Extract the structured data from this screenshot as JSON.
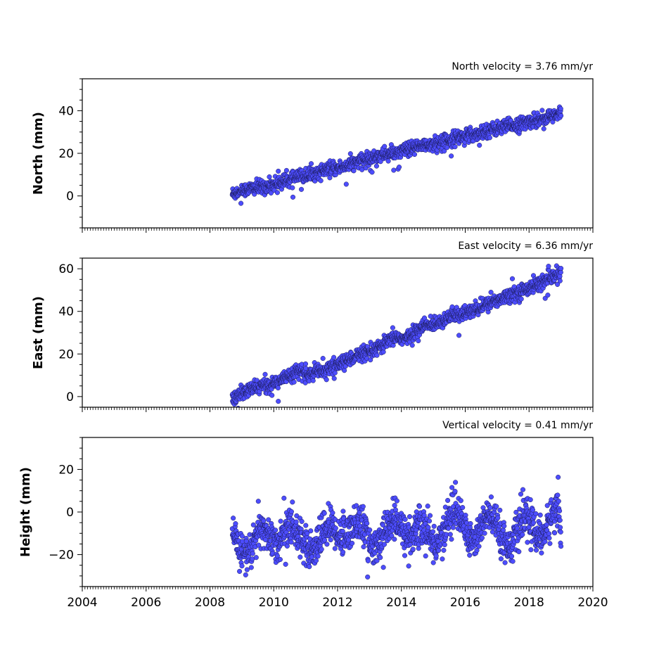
{
  "colors": {
    "marker_fill": "#4d4dff",
    "marker_edge": "#1a1a55",
    "axes": "#000000",
    "background": "#ffffff"
  },
  "chart_data": [
    {
      "type": "scatter",
      "title": "North velocity = 3.76 mm/yr",
      "xlabel": "",
      "ylabel": "North (mm)",
      "xlim": [
        2004,
        2020
      ],
      "ylim": [
        -15,
        55
      ],
      "yticks": [
        0,
        20,
        40
      ],
      "ytick_labels": [
        "0",
        "20",
        "40"
      ],
      "xtick_labels_visible": false,
      "series": [
        {
          "x": [
            2008.7,
            2009.0,
            2009.3,
            2009.6,
            2009.9,
            2010.2,
            2010.5,
            2010.8,
            2011.1,
            2011.4,
            2011.7,
            2012.0,
            2012.3,
            2012.6,
            2012.9,
            2013.2,
            2013.5,
            2013.8,
            2014.1,
            2014.4,
            2014.7,
            2015.0,
            2015.3,
            2015.6,
            2015.9,
            2016.2,
            2016.5,
            2016.8,
            2017.1,
            2017.4,
            2017.7,
            2018.0,
            2018.3,
            2018.6,
            2018.9,
            2019.0
          ],
          "y": [
            1,
            2.5,
            3.5,
            4,
            5,
            6.5,
            7.5,
            9,
            10,
            11,
            12.5,
            13,
            14.5,
            16,
            17,
            18.5,
            19.5,
            20,
            21.5,
            22.5,
            23.5,
            24.5,
            25.5,
            27,
            28,
            28.5,
            30,
            31,
            32,
            33,
            33.5,
            35,
            36,
            37,
            38,
            39
          ]
        }
      ]
    },
    {
      "type": "scatter",
      "title": "East velocity = 6.36 mm/yr",
      "xlabel": "",
      "ylabel": "East (mm)",
      "xlim": [
        2004,
        2020
      ],
      "ylim": [
        -5,
        65
      ],
      "yticks": [
        0,
        20,
        40,
        60
      ],
      "ytick_labels": [
        "0",
        "20",
        "40",
        "60"
      ],
      "xtick_labels_visible": false,
      "series": [
        {
          "x": [
            2008.7,
            2009.0,
            2009.3,
            2009.6,
            2009.9,
            2010.2,
            2010.5,
            2010.8,
            2011.1,
            2011.4,
            2011.7,
            2012.0,
            2012.3,
            2012.6,
            2012.9,
            2013.2,
            2013.5,
            2013.8,
            2014.1,
            2014.4,
            2014.7,
            2015.0,
            2015.3,
            2015.6,
            2015.9,
            2016.2,
            2016.5,
            2016.8,
            2017.1,
            2017.4,
            2017.7,
            2018.0,
            2018.3,
            2018.6,
            2018.9,
            2019.0
          ],
          "y": [
            -1,
            1.5,
            3.5,
            5,
            5.5,
            8,
            10,
            12,
            10,
            12,
            13,
            15,
            17,
            19.5,
            20,
            22,
            25,
            28,
            27,
            30,
            33,
            34,
            36,
            38,
            39,
            40,
            42,
            44,
            46,
            48,
            49,
            51,
            53,
            55,
            57,
            58
          ]
        }
      ]
    },
    {
      "type": "scatter",
      "title": "Vertical velocity = 0.41 mm/yr",
      "xlabel": "",
      "ylabel": "Height (mm)",
      "xlim": [
        2004,
        2020
      ],
      "ylim": [
        -35,
        35
      ],
      "yticks": [
        -20,
        0,
        20
      ],
      "ytick_labels": [
        "−20",
        "0",
        "20"
      ],
      "xticks": [
        2004,
        2006,
        2008,
        2010,
        2012,
        2014,
        2016,
        2018,
        2020
      ],
      "xtick_labels": [
        "2004",
        "2006",
        "2008",
        "2010",
        "2012",
        "2014",
        "2016",
        "2018",
        "2020"
      ],
      "series": [
        {
          "x": [
            2008.7,
            2008.9,
            2009.1,
            2009.3,
            2009.5,
            2009.7,
            2009.9,
            2010.1,
            2010.3,
            2010.5,
            2010.7,
            2010.9,
            2011.1,
            2011.3,
            2011.5,
            2011.7,
            2011.9,
            2012.1,
            2012.3,
            2012.5,
            2012.7,
            2012.9,
            2013.1,
            2013.3,
            2013.5,
            2013.7,
            2013.9,
            2014.1,
            2014.3,
            2014.5,
            2014.7,
            2014.9,
            2015.1,
            2015.3,
            2015.5,
            2015.7,
            2015.9,
            2016.1,
            2016.3,
            2016.5,
            2016.7,
            2016.9,
            2017.1,
            2017.3,
            2017.5,
            2017.7,
            2017.9,
            2018.1,
            2018.3,
            2018.5,
            2018.7,
            2018.9,
            2019.0
          ],
          "y": [
            -10,
            -16,
            -20,
            -18,
            -10,
            -8,
            -12,
            -15,
            -10,
            -6,
            -8,
            -14,
            -20,
            -18,
            -10,
            -6,
            -8,
            -12,
            -10,
            -6,
            -4,
            -10,
            -18,
            -16,
            -8,
            -4,
            -6,
            -10,
            -12,
            -8,
            -6,
            -12,
            -16,
            -10,
            -2,
            2,
            -4,
            -12,
            -14,
            -6,
            -2,
            -4,
            -10,
            -16,
            -14,
            -6,
            -2,
            -6,
            -12,
            -10,
            -2,
            4,
            -10
          ]
        }
      ]
    }
  ]
}
